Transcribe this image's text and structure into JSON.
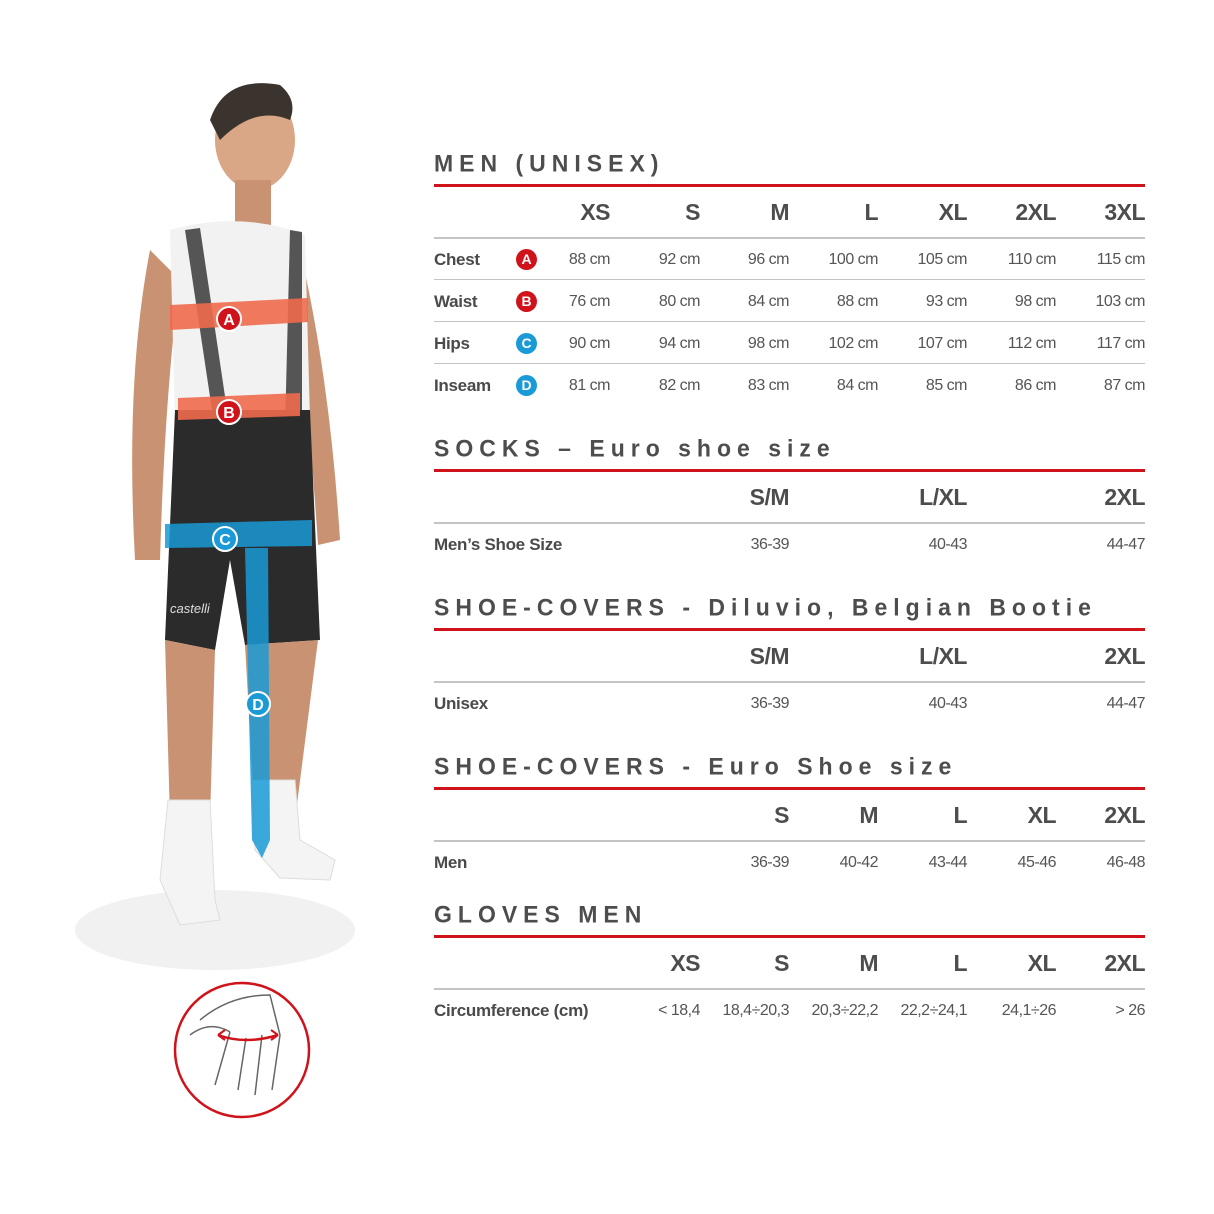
{
  "colors": {
    "accent_red": "#d0121b",
    "marker_red": "#d0121b",
    "marker_blue": "#1a9ad6",
    "band_orange": "#ee6a4d",
    "band_blue": "#1a9ad6"
  },
  "figure": {
    "markers": [
      "A",
      "B",
      "C",
      "D"
    ],
    "shorts_brand": "castelli",
    "glove_icon": "hand-circumference-icon"
  },
  "sections": [
    {
      "title": "MEN (UNISEX)",
      "sizes": [
        "XS",
        "S",
        "M",
        "L",
        "XL",
        "2XL",
        "3XL"
      ],
      "rows": [
        {
          "label": "Chest",
          "marker": "A",
          "marker_color": "#d0121b",
          "values": [
            "88 cm",
            "92 cm",
            "96 cm",
            "100 cm",
            "105 cm",
            "110 cm",
            "115 cm"
          ]
        },
        {
          "label": "Waist",
          "marker": "B",
          "marker_color": "#d0121b",
          "values": [
            "76 cm",
            "80 cm",
            "84 cm",
            "88 cm",
            "93 cm",
            "98 cm",
            "103 cm"
          ]
        },
        {
          "label": "Hips",
          "marker": "C",
          "marker_color": "#1a9ad6",
          "values": [
            "90 cm",
            "94 cm",
            "98 cm",
            "102 cm",
            "107 cm",
            "112 cm",
            "117 cm"
          ]
        },
        {
          "label": "Inseam",
          "marker": "D",
          "marker_color": "#1a9ad6",
          "values": [
            "81 cm",
            "82 cm",
            "83 cm",
            "84 cm",
            "85 cm",
            "86 cm",
            "87 cm"
          ]
        }
      ]
    },
    {
      "title": "SOCKS – Euro shoe size",
      "sizes": [
        "S/M",
        "L/XL",
        "2XL"
      ],
      "rows": [
        {
          "label": "Men’s Shoe Size",
          "values": [
            "36-39",
            "40-43",
            "44-47"
          ]
        }
      ]
    },
    {
      "title": "SHOE-COVERS - Diluvio, Belgian Bootie",
      "sizes": [
        "S/M",
        "L/XL",
        "2XL"
      ],
      "rows": [
        {
          "label": "Unisex",
          "values": [
            "36-39",
            "40-43",
            "44-47"
          ]
        }
      ]
    },
    {
      "title": "SHOE-COVERS - Euro Shoe size",
      "sizes": [
        "S",
        "M",
        "L",
        "XL",
        "2XL"
      ],
      "rows": [
        {
          "label": "Men",
          "values": [
            "36-39",
            "40-42",
            "43-44",
            "45-46",
            "46-48"
          ]
        }
      ]
    },
    {
      "title": "GLOVES MEN",
      "sizes": [
        "XS",
        "S",
        "M",
        "L",
        "XL",
        "2XL"
      ],
      "rows": [
        {
          "label": "Circumference (cm)",
          "values": [
            "< 18,4",
            "18,4÷20,3",
            "20,3÷22,2",
            "22,2÷24,1",
            "24,1÷26",
            "> 26"
          ]
        }
      ]
    }
  ]
}
